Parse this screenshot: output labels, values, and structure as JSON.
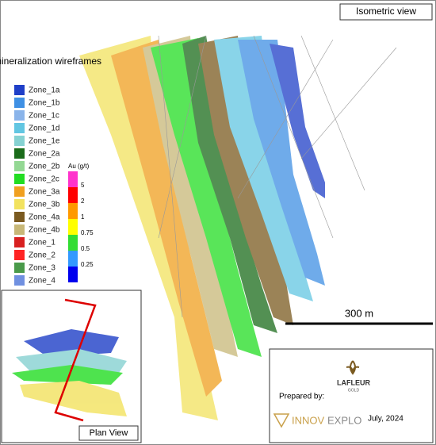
{
  "header": {
    "title": "Isometric view"
  },
  "annotation": "mineralization wireframes",
  "zones": [
    {
      "name": "Zone_1a",
      "color": "#1f3fc8"
    },
    {
      "name": "Zone_1b",
      "color": "#3f90e4"
    },
    {
      "name": "Zone_1c",
      "color": "#8ab4ea"
    },
    {
      "name": "Zone_1d",
      "color": "#62c6e2"
    },
    {
      "name": "Zone_1e",
      "color": "#86d2d2"
    },
    {
      "name": "Zone_2a",
      "color": "#1a6b1a"
    },
    {
      "name": "Zone_2b",
      "color": "#94d894"
    },
    {
      "name": "Zone_2c",
      "color": "#22dd22"
    },
    {
      "name": "Zone_3a",
      "color": "#f0a020"
    },
    {
      "name": "Zone_3b",
      "color": "#f2e25e"
    },
    {
      "name": "Zone_4a",
      "color": "#7a5a20"
    },
    {
      "name": "Zone_4b",
      "color": "#c8b878"
    },
    {
      "name": "Zone_1",
      "color": "#d82020"
    },
    {
      "name": "Zone_2",
      "color": "#ff2424"
    },
    {
      "name": "Zone_3",
      "color": "#4a9a4a"
    },
    {
      "name": "Zone_4",
      "color": "#7090e0"
    }
  ],
  "grade_legend": {
    "title": "Au (g/t)",
    "labels": [
      "5",
      "2",
      "1",
      "0.75",
      "0.5",
      "0.25"
    ],
    "colors": [
      "#ff33cc",
      "#ff0000",
      "#ff9900",
      "#ffff00",
      "#33dd33",
      "#3399ff",
      "#0000ee"
    ]
  },
  "scale_bar": "300 m",
  "inset": {
    "title": "Plan View"
  },
  "credits": {
    "prepared_by": "Prepared by:",
    "client": "LAFLEUR",
    "client_sub": "GOLD",
    "logo_prefix": "INNOV",
    "logo_suffix": "EXPLO",
    "date": "July, 2024"
  }
}
